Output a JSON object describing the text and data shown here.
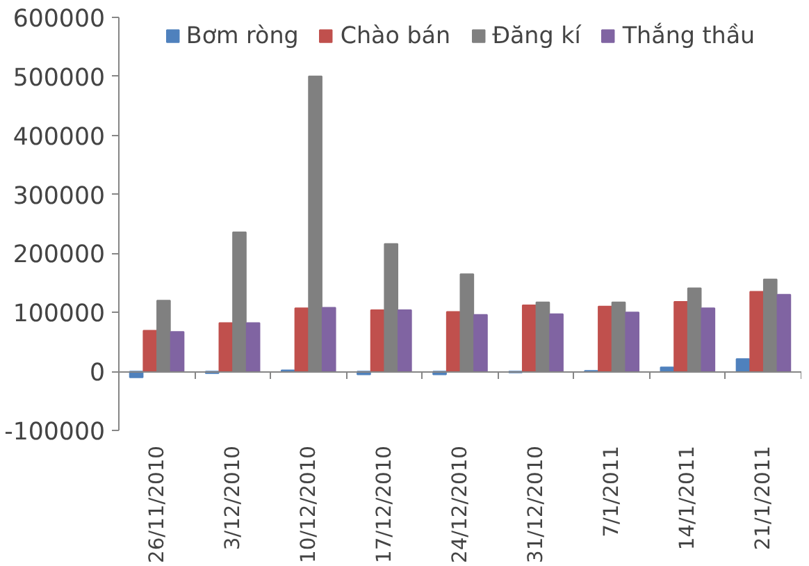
{
  "chart_data": {
    "type": "bar",
    "categories": [
      "26/11/2010",
      "3/12/2010",
      "10/12/2010",
      "17/12/2010",
      "24/12/2010",
      "31/12/2010",
      "7/1/2011",
      "14/1/2011",
      "21/1/2011"
    ],
    "series": [
      {
        "name": "Bơm ròng",
        "color": "#4f81bd",
        "values": [
          -10000,
          -3000,
          2000,
          -5000,
          -5000,
          -2000,
          1000,
          7000,
          21000
        ]
      },
      {
        "name": "Chào bán",
        "color": "#c0504d",
        "values": [
          69000,
          82000,
          107000,
          104000,
          101000,
          112000,
          110000,
          118000,
          135000
        ]
      },
      {
        "name": "Đăng kí",
        "color": "#808080",
        "values": [
          120000,
          236000,
          500000,
          216000,
          165000,
          117000,
          117000,
          141000,
          156000
        ]
      },
      {
        "name": "Thắng thầu",
        "color": "#8064a2",
        "values": [
          67000,
          82000,
          108000,
          104000,
          96000,
          97000,
          100000,
          107000,
          130000
        ]
      }
    ],
    "ylim": [
      -100000,
      600000
    ],
    "yticks": [
      -100000,
      0,
      100000,
      200000,
      300000,
      400000,
      500000,
      600000
    ],
    "legend": "top"
  }
}
